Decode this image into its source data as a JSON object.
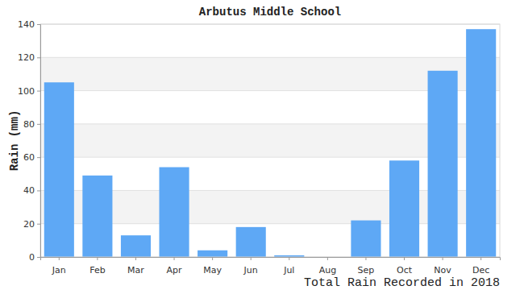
{
  "chart_data": {
    "type": "bar",
    "title": "Arbutus Middle School",
    "y_label": "Rain (mm)",
    "x_label": "Total Rain Recorded in 2018",
    "categories": [
      "Jan",
      "Feb",
      "Mar",
      "Apr",
      "May",
      "Jun",
      "Jul",
      "Aug",
      "Sep",
      "Oct",
      "Nov",
      "Dec"
    ],
    "values": [
      105,
      49,
      13,
      54,
      4,
      18,
      1,
      0,
      22,
      58,
      112,
      137
    ],
    "color": "#5ea8f5",
    "ylim": [
      0,
      140
    ],
    "yticks": [
      0,
      20,
      40,
      60,
      80,
      100,
      120,
      140
    ],
    "grid": true
  }
}
